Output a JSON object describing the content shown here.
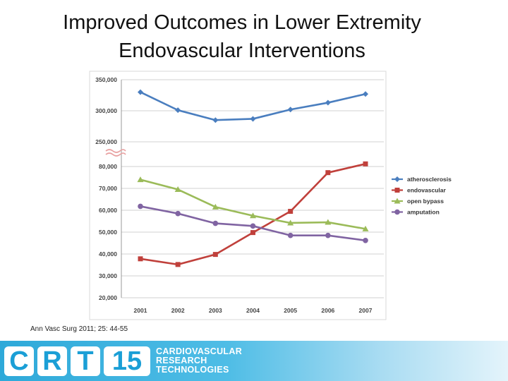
{
  "title": {
    "line1": "Improved Outcomes in Lower Extremity",
    "line2": "Endovascular Interventions"
  },
  "citation": "Ann Vasc Surg 2011; 25: 44-55",
  "logo": {
    "letters": [
      "C",
      "R",
      "T"
    ],
    "number": "15",
    "text_lines": [
      "CARDIOVASCULAR",
      "RESEARCH",
      "TECHNOLOGIES"
    ]
  },
  "colors": {
    "atherosclerosis": "#4a7ebf",
    "endovascular": "#c0403b",
    "open_bypass": "#9bbb59",
    "amputation": "#8064a2",
    "break_mark": "#e8a0a0"
  },
  "chart_data": {
    "type": "line",
    "title": "",
    "xlabel": "",
    "ylabel": "",
    "categories": [
      "2001",
      "2002",
      "2003",
      "2004",
      "2005",
      "2006",
      "2007"
    ],
    "axis_break": {
      "lower_range": [
        20000,
        80000
      ],
      "upper_range": [
        250000,
        350000
      ]
    },
    "y_ticks_lower": [
      "20,000",
      "30,000",
      "40,000",
      "50,000",
      "60,000",
      "70,000",
      "80,000"
    ],
    "y_ticks_upper": [
      "250,000",
      "300,000",
      "350,000"
    ],
    "legend_position": "right",
    "series": [
      {
        "name": "atherosclerosis",
        "marker": "diamond",
        "values": [
          330000,
          301000,
          285000,
          287000,
          302000,
          313000,
          327000
        ]
      },
      {
        "name": "endovascular",
        "marker": "square",
        "values": [
          37800,
          35200,
          39800,
          49800,
          59500,
          77200,
          81200
        ]
      },
      {
        "name": "open bypass",
        "marker": "triangle",
        "values": [
          74000,
          69500,
          61500,
          57500,
          54200,
          54500,
          51500
        ]
      },
      {
        "name": "amputation",
        "marker": "circle",
        "values": [
          61800,
          58500,
          54000,
          52800,
          48500,
          48500,
          46200
        ]
      }
    ]
  }
}
